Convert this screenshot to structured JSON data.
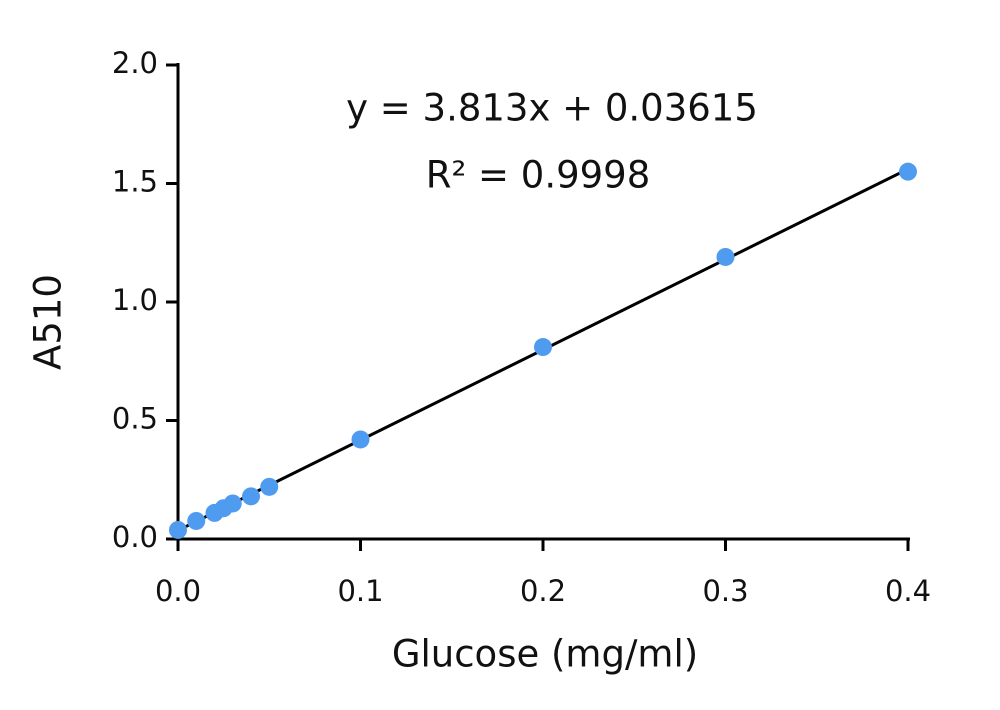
{
  "chart_data": {
    "type": "scatter",
    "x_label": "Glucose (mg/ml)",
    "y_label": "A510",
    "annotations": [
      "y = 3.813x + 0.03615",
      "R² = 0.9998"
    ],
    "x": [
      0,
      0.01,
      0.02,
      0.025,
      0.03,
      0.04,
      0.05,
      0.1,
      0.2,
      0.3,
      0.4
    ],
    "values": [
      0.038,
      0.076,
      0.11,
      0.13,
      0.15,
      0.18,
      0.22,
      0.42,
      0.81,
      1.19,
      1.55
    ],
    "color": "#4f9bf0",
    "fit_line": {
      "x": [
        0,
        0.4
      ],
      "values": [
        0.036,
        1.561
      ],
      "color": "#000000"
    },
    "xlim": [
      0,
      0.4
    ],
    "xticks": [
      {
        "value": 0,
        "label": "0.0"
      },
      0.1,
      0.2,
      0.3,
      0.4
    ],
    "ylim": [
      0,
      2
    ],
    "yticks": [
      {
        "value": 0,
        "label": "0.0"
      },
      0.5,
      {
        "value": 1,
        "label": "1.0"
      },
      1.5,
      {
        "value": 2,
        "label": "2.0"
      }
    ]
  }
}
